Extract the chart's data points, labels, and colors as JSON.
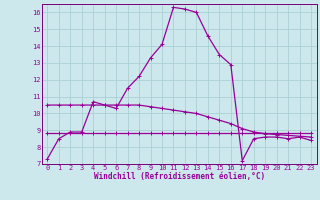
{
  "xlabel": "Windchill (Refroidissement éolien,°C)",
  "background_color": "#cce8ec",
  "grid_color": "#aacfd4",
  "line_color": "#990099",
  "spine_color": "#7a007a",
  "xlim": [
    -0.5,
    23.5
  ],
  "ylim": [
    7,
    16.5
  ],
  "yticks": [
    7,
    8,
    9,
    10,
    11,
    12,
    13,
    14,
    15,
    16
  ],
  "xticks": [
    0,
    1,
    2,
    3,
    4,
    5,
    6,
    7,
    8,
    9,
    10,
    11,
    12,
    13,
    14,
    15,
    16,
    17,
    18,
    19,
    20,
    21,
    22,
    23
  ],
  "line1_x": [
    0,
    1,
    2,
    3,
    4,
    5,
    6,
    7,
    8,
    9,
    10,
    11,
    12,
    13,
    14,
    15,
    16,
    17,
    18,
    19,
    20,
    21,
    22,
    23
  ],
  "line1_y": [
    7.3,
    8.5,
    8.9,
    8.9,
    10.7,
    10.5,
    10.3,
    11.5,
    12.2,
    13.3,
    14.1,
    16.3,
    16.2,
    16.0,
    14.6,
    13.5,
    12.9,
    7.2,
    8.5,
    8.6,
    8.6,
    8.5,
    8.6,
    8.4
  ],
  "line2_x": [
    0,
    1,
    2,
    3,
    4,
    5,
    6,
    7,
    8,
    9,
    10,
    11,
    12,
    13,
    14,
    15,
    16,
    17,
    18,
    19,
    20,
    21,
    22,
    23
  ],
  "line2_y": [
    8.85,
    8.85,
    8.85,
    8.85,
    8.85,
    8.85,
    8.85,
    8.85,
    8.85,
    8.85,
    8.85,
    8.85,
    8.85,
    8.85,
    8.85,
    8.85,
    8.85,
    8.85,
    8.85,
    8.85,
    8.85,
    8.85,
    8.85,
    8.85
  ],
  "line3_x": [
    0,
    1,
    2,
    3,
    4,
    5,
    6,
    7,
    8,
    9,
    10,
    11,
    12,
    13,
    14,
    15,
    16,
    17,
    18,
    19,
    20,
    21,
    22,
    23
  ],
  "line3_y": [
    10.5,
    10.5,
    10.5,
    10.5,
    10.5,
    10.5,
    10.5,
    10.5,
    10.5,
    10.4,
    10.3,
    10.2,
    10.1,
    10.0,
    9.8,
    9.6,
    9.4,
    9.1,
    8.9,
    8.8,
    8.75,
    8.7,
    8.65,
    8.6
  ],
  "marker_style": "+",
  "marker_size": 3.5,
  "linewidth": 0.9,
  "tick_fontsize": 5.0,
  "xlabel_fontsize": 5.5
}
